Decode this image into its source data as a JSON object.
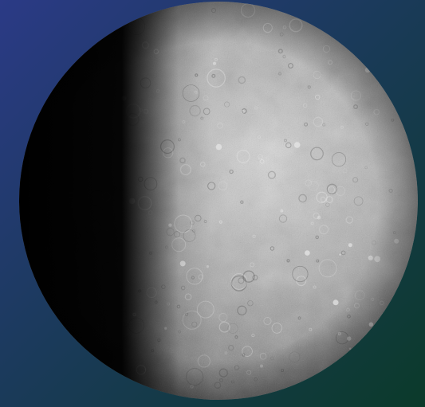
{
  "scene": {
    "subject": "planet-mercury",
    "phase": "gibbous"
  },
  "colors": {
    "background_top_left": "#2b3a86",
    "background_mid": "#1b3a5c",
    "background_bottom_right": "#0b3a2a",
    "surface_light": "#d6d6d6",
    "surface_mid": "#a9a9a9",
    "surface_dark": "#6d6d6d",
    "night_side": "#050505"
  }
}
